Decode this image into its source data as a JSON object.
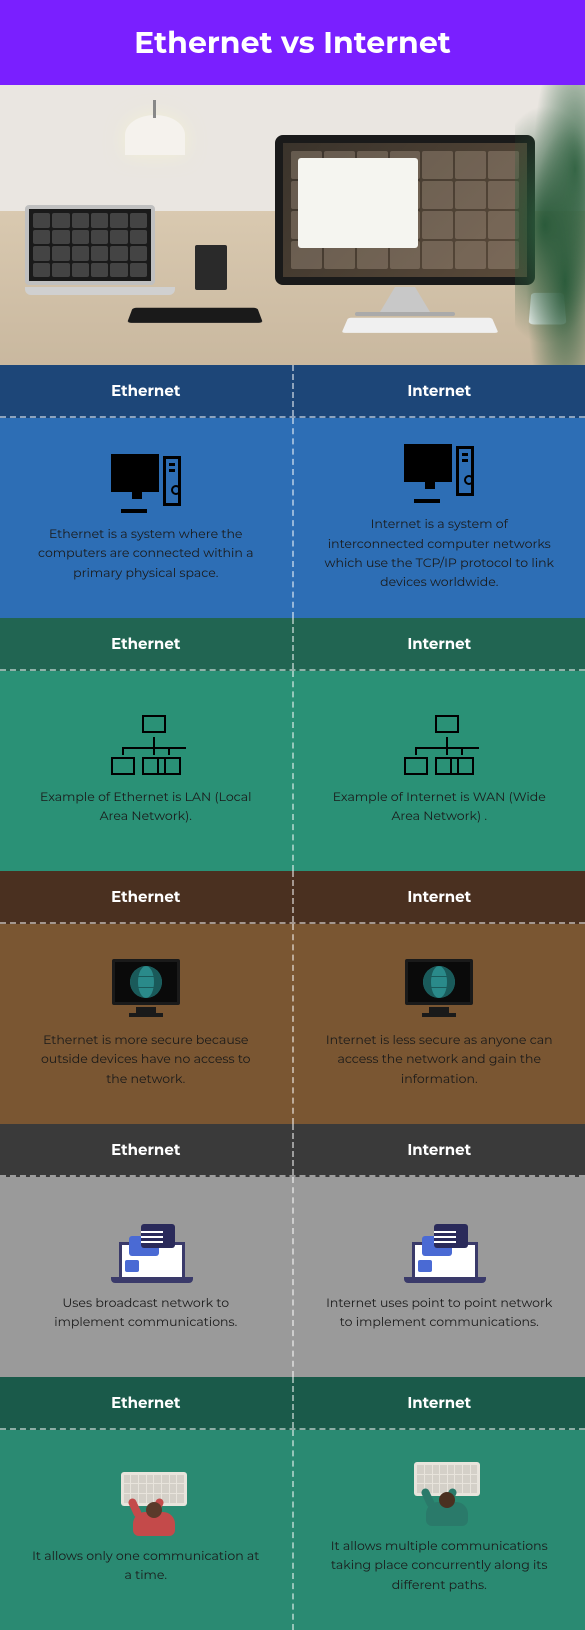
{
  "title": "Ethernet vs Internet",
  "columns": {
    "left": "Ethernet",
    "right": "Internet"
  },
  "sections": [
    {
      "header_bg": "#1d4678",
      "body_bg": "#2d6eb5",
      "icon": "pc",
      "left_text": "Ethernet is a system where the computers are connected within a primary physical space.",
      "right_text": "Internet is a system of interconnected computer networks which use the TCP/IP protocol to link devices worldwide."
    },
    {
      "header_bg": "#216552",
      "body_bg": "#2a9176",
      "icon": "net",
      "left_text": "Example of Ethernet is LAN (Local Area Network).",
      "right_text": "Example of Internet is WAN (Wide Area Network) ."
    },
    {
      "header_bg": "#4a3020",
      "body_bg": "#7a5632",
      "icon": "gmon",
      "left_text": "Ethernet is more secure because outside devices have no access to the network.",
      "right_text": "Internet is less secure as anyone can access the network and gain the information."
    },
    {
      "header_bg": "#3a3a3a",
      "body_bg": "#9a9a9a",
      "icon": "chat",
      "left_text": "Uses broadcast network to implement communications.",
      "right_text": "Internet uses point to point network to implement communications."
    },
    {
      "header_bg": "#1a5a4a",
      "body_bg": "#2a8a72",
      "icon": "ptk",
      "left_text": "It allows only one communication at a time.",
      "right_text": "It allows multiple communications taking place concurrently along its different paths."
    }
  ]
}
